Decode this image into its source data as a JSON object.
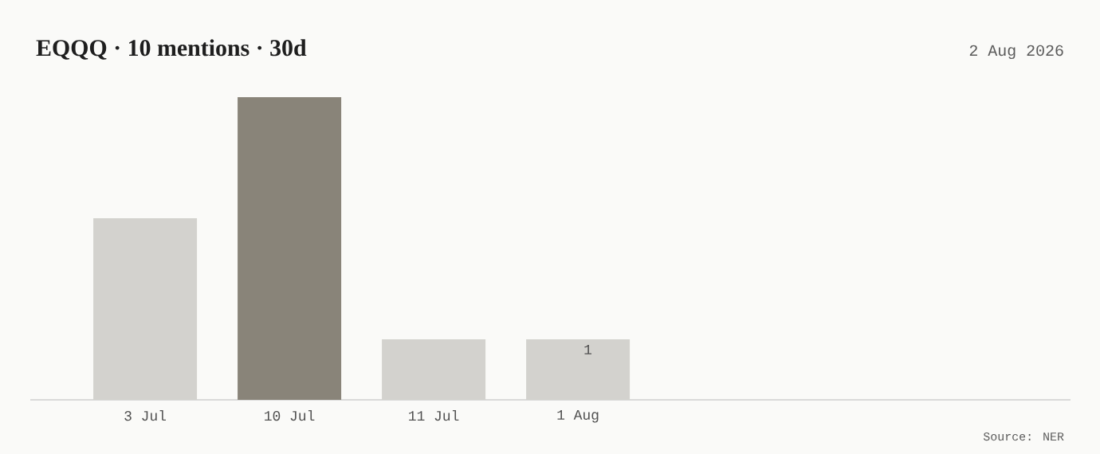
{
  "chart_data": {
    "type": "bar",
    "title": "EQQQ · 10 mentions · 30d",
    "categories": [
      "3 Jul",
      "10 Jul",
      "11 Jul",
      "1 Aug"
    ],
    "values": [
      3,
      5,
      1,
      1
    ],
    "colors": [
      "#d3d2ce",
      "#898479",
      "#d3d2ce",
      "#d3d2ce"
    ],
    "value_labels": [
      null,
      null,
      null,
      "1"
    ],
    "annotations": [
      "2 Aug 2026",
      "Source: NER"
    ]
  }
}
